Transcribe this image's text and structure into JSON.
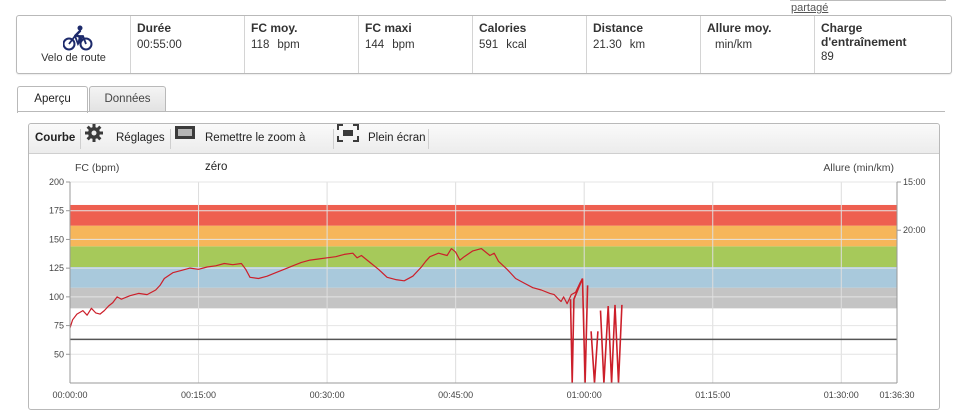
{
  "top": {
    "link": "partagé"
  },
  "summary": {
    "sport": "Velo de route",
    "sport_icon": "cyclist-icon",
    "cells": [
      {
        "label": "Durée",
        "value": "00:55:00",
        "unit": ""
      },
      {
        "label": "FC moy.",
        "value": "118",
        "unit": "bpm"
      },
      {
        "label": "FC maxi",
        "value": "144",
        "unit": "bpm"
      },
      {
        "label": "Calories",
        "value": "591",
        "unit": "kcal"
      },
      {
        "label": "Distance",
        "value": "21.30",
        "unit": "km"
      },
      {
        "label": "Allure moy.",
        "value": "",
        "unit": "min/km"
      },
      {
        "label": "Charge d'entraînement",
        "value": "89",
        "unit": ""
      }
    ]
  },
  "tabs": [
    {
      "label": "Aperçu",
      "active": true
    },
    {
      "label": "Données",
      "active": false
    }
  ],
  "toolbar": {
    "title": "Courbe",
    "settings": "Réglages",
    "reset_zoom": "Remettre le zoom à zéro",
    "fullscreen": "Plein écran"
  },
  "chart_data": {
    "type": "line",
    "ylabel_left": "FC (bpm)",
    "ylabel_right": "Allure (min/km)",
    "y_ticks": [
      200,
      175,
      150,
      125,
      100,
      75,
      50
    ],
    "ylim": [
      25,
      200
    ],
    "right_ticks": [
      "15:00",
      "20:00"
    ],
    "x_ticks": [
      "00:00:00",
      "00:15:00",
      "00:30:00",
      "00:45:00",
      "01:00:00",
      "01:15:00",
      "01:30:00",
      "01:36:30"
    ],
    "xlim_min": [
      0,
      96.5
    ],
    "zones": [
      {
        "from": 90,
        "to": 108,
        "color": "#c4c4c4"
      },
      {
        "from": 108,
        "to": 126,
        "color": "#a9c9dc"
      },
      {
        "from": 126,
        "to": 144,
        "color": "#a6c95a"
      },
      {
        "from": 144,
        "to": 162,
        "color": "#f6b65a"
      },
      {
        "from": 162,
        "to": 180,
        "color": "#ee5f50"
      }
    ],
    "pace_line_bpm": 63,
    "colors": {
      "hr_line": "#cc1f2a",
      "pace_line": "#555555",
      "grid": "#dddddd"
    },
    "hr_series": {
      "name": "FC",
      "x_min": [
        0,
        0.3,
        0.8,
        1.5,
        2,
        2.5,
        3,
        3.5,
        4,
        4.5,
        5,
        5.5,
        6,
        7,
        8,
        9,
        10,
        10.5,
        11,
        12,
        13,
        14,
        15,
        16,
        17,
        18,
        19,
        20,
        20.5,
        21,
        22,
        23,
        24,
        25,
        26,
        27,
        28,
        29,
        30,
        31,
        32,
        33,
        33.5,
        34,
        35,
        36,
        37,
        38,
        39,
        40,
        41,
        41.5,
        42,
        43,
        44,
        44.5,
        45,
        45.5,
        46,
        47,
        48,
        49,
        49.5,
        50,
        51,
        52,
        53,
        54,
        55,
        56,
        56.5,
        57,
        57.3,
        57.6,
        58,
        58.5,
        59,
        59.5,
        59.8
      ],
      "bpm": [
        73,
        80,
        85,
        88,
        84,
        90,
        86,
        85,
        88,
        92,
        95,
        100,
        98,
        101,
        103,
        102,
        106,
        110,
        116,
        121,
        123,
        125,
        124,
        126,
        127,
        129,
        128,
        129,
        124,
        117,
        116,
        118,
        121,
        124,
        127,
        130,
        132,
        133,
        134,
        135,
        137,
        138,
        134,
        136,
        130,
        124,
        117,
        115,
        114,
        118,
        126,
        131,
        135,
        138,
        136,
        142,
        139,
        132,
        135,
        140,
        142,
        136,
        138,
        131,
        124,
        116,
        112,
        108,
        106,
        103,
        102,
        98,
        96,
        100,
        94,
        102,
        104,
        112,
        116
      ]
    },
    "hr_drops": [
      {
        "x_min": [
          58.4,
          58.6,
          58.8,
          59.8,
          60.1,
          60.4
        ],
        "bpm": [
          98,
          20,
          98,
          116,
          20,
          110
        ]
      },
      {
        "x_min": [
          60.8,
          61.2,
          61.6
        ],
        "bpm": [
          70,
          20,
          70
        ]
      },
      {
        "x_min": [
          61.9,
          62.3,
          62.8,
          63.2,
          63.6,
          64.0,
          64.4
        ],
        "bpm": [
          88,
          20,
          92,
          20,
          93,
          20,
          93
        ]
      }
    ]
  }
}
